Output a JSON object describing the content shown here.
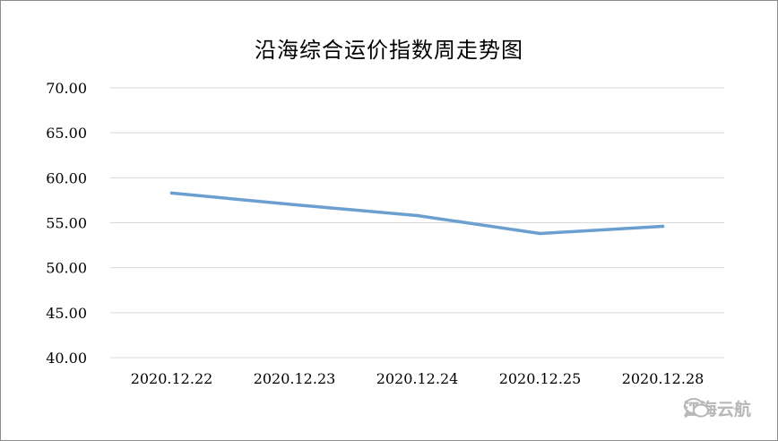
{
  "chart_data": {
    "type": "line",
    "title": "沿海综合运价指数周走势图",
    "categories": [
      "2020.12.22",
      "2020.12.23",
      "2020.12.24",
      "2020.12.25",
      "2020.12.28"
    ],
    "series": [
      {
        "values": [
          58.3,
          57.0,
          55.8,
          53.8,
          54.6
        ]
      }
    ],
    "ylim": [
      40,
      70
    ],
    "yticks": [
      "40.00",
      "45.00",
      "50.00",
      "55.00",
      "60.00",
      "65.00",
      "70.00"
    ],
    "grid": true,
    "line_color": "#6a9fcf"
  },
  "watermark": {
    "icon": "wechat-icon",
    "text": "江海云航"
  }
}
